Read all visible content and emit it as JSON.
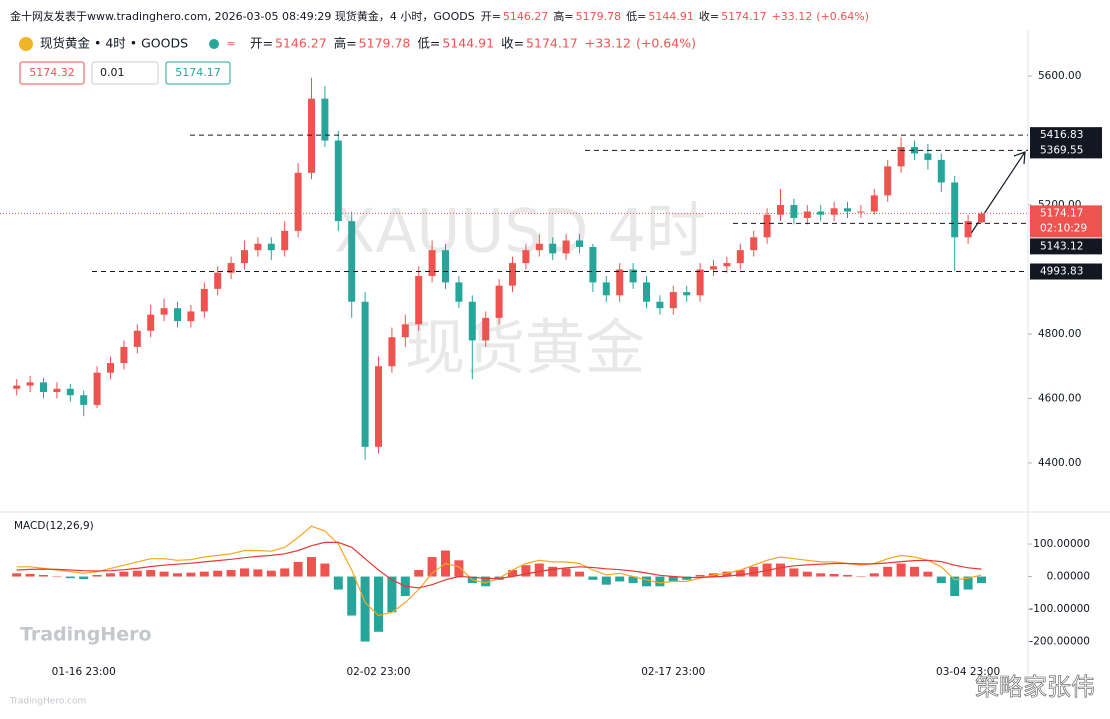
{
  "header": {
    "text": "金十网友发表于www.tradinghero.com, 2026-03-05 08:49:29 现货黄金，4 小时，GOODS",
    "ohlc": [
      {
        "label": "开=",
        "value": 5146.27
      },
      {
        "label": "高=",
        "value": 5179.78
      },
      {
        "label": "低=",
        "value": 5144.91
      },
      {
        "label": "收=",
        "value": 5174.17
      }
    ],
    "change": "+33.12",
    "change_pct": "(+0.64%)"
  },
  "order": {
    "sell": 5174.32,
    "qty": 0.01,
    "buy": 5174.17
  },
  "footer": {
    "logo": "TradingHero",
    "site": "TradingHero.com",
    "credit": "策略家张伟"
  },
  "chart_data": {
    "type": "candlestick",
    "title": "现货黄金 • 4时 • GOODS",
    "watermark": [
      "XAUUSD 4时",
      "现货黄金"
    ],
    "categories": [
      null,
      null,
      null,
      null,
      null,
      "01-16 23:00",
      null,
      null,
      null,
      null,
      null,
      null,
      null,
      null,
      null,
      null,
      null,
      null,
      null,
      null,
      null,
      null,
      null,
      null,
      null,
      null,
      null,
      "02-02 23:00",
      null,
      null,
      null,
      null,
      null,
      null,
      null,
      null,
      null,
      null,
      null,
      null,
      null,
      null,
      null,
      null,
      null,
      null,
      null,
      null,
      null,
      "02-17 23:00",
      null,
      null,
      null,
      null,
      null,
      null,
      null,
      null,
      null,
      null,
      null,
      null,
      null,
      null,
      null,
      null,
      null,
      null,
      null,
      null,
      null,
      "03-04 23:00",
      null
    ],
    "candles": [
      [
        4630,
        4660,
        4610,
        4640
      ],
      [
        4640,
        4670,
        4620,
        4650
      ],
      [
        4650,
        4665,
        4600,
        4620
      ],
      [
        4620,
        4650,
        4600,
        4630
      ],
      [
        4630,
        4645,
        4590,
        4610
      ],
      [
        4610,
        4625,
        4545,
        4580
      ],
      [
        4580,
        4700,
        4570,
        4680
      ],
      [
        4680,
        4730,
        4660,
        4710
      ],
      [
        4710,
        4780,
        4690,
        4760
      ],
      [
        4760,
        4830,
        4740,
        4810
      ],
      [
        4810,
        4890,
        4790,
        4860
      ],
      [
        4860,
        4910,
        4840,
        4880
      ],
      [
        4880,
        4900,
        4820,
        4840
      ],
      [
        4840,
        4890,
        4820,
        4870
      ],
      [
        4870,
        4960,
        4850,
        4940
      ],
      [
        4940,
        5010,
        4920,
        4990
      ],
      [
        4990,
        5040,
        4970,
        5020
      ],
      [
        5020,
        5090,
        5000,
        5060
      ],
      [
        5060,
        5100,
        5040,
        5080
      ],
      [
        5080,
        5100,
        5030,
        5060
      ],
      [
        5060,
        5150,
        5040,
        5120
      ],
      [
        5120,
        5330,
        5100,
        5300
      ],
      [
        5300,
        5595,
        5280,
        5530
      ],
      [
        5530,
        5570,
        5380,
        5400
      ],
      [
        5400,
        5430,
        5120,
        5150
      ],
      [
        5150,
        5180,
        4850,
        4900
      ],
      [
        4900,
        4930,
        4410,
        4450
      ],
      [
        4450,
        4730,
        4430,
        4700
      ],
      [
        4700,
        4820,
        4680,
        4790
      ],
      [
        4790,
        4860,
        4760,
        4830
      ],
      [
        4830,
        5010,
        4810,
        4980
      ],
      [
        4980,
        5090,
        4960,
        5060
      ],
      [
        5060,
        5080,
        4940,
        4960
      ],
      [
        4960,
        4980,
        4880,
        4900
      ],
      [
        4900,
        4920,
        4660,
        4780
      ],
      [
        4780,
        4870,
        4760,
        4850
      ],
      [
        4850,
        4970,
        4830,
        4950
      ],
      [
        4950,
        5040,
        4930,
        5020
      ],
      [
        5020,
        5080,
        5000,
        5060
      ],
      [
        5060,
        5110,
        5040,
        5080
      ],
      [
        5080,
        5100,
        5030,
        5050
      ],
      [
        5050,
        5110,
        5030,
        5090
      ],
      [
        5090,
        5110,
        5050,
        5070
      ],
      [
        5070,
        5080,
        4930,
        4960
      ],
      [
        4960,
        4980,
        4900,
        4920
      ],
      [
        4920,
        5020,
        4900,
        5000
      ],
      [
        5000,
        5020,
        4940,
        4960
      ],
      [
        4960,
        4980,
        4880,
        4900
      ],
      [
        4900,
        4920,
        4860,
        4880
      ],
      [
        4880,
        4950,
        4860,
        4930
      ],
      [
        4930,
        4950,
        4900,
        4920
      ],
      [
        4920,
        5020,
        4900,
        5000
      ],
      [
        5000,
        5030,
        4980,
        5010
      ],
      [
        5010,
        5040,
        4990,
        5020
      ],
      [
        5020,
        5080,
        5000,
        5060
      ],
      [
        5060,
        5120,
        5040,
        5100
      ],
      [
        5100,
        5190,
        5080,
        5170
      ],
      [
        5170,
        5250,
        5150,
        5200
      ],
      [
        5200,
        5220,
        5140,
        5160
      ],
      [
        5160,
        5200,
        5140,
        5180
      ],
      [
        5180,
        5200,
        5150,
        5170
      ],
      [
        5170,
        5210,
        5150,
        5190
      ],
      [
        5190,
        5210,
        5160,
        5180
      ],
      [
        5180,
        5200,
        5160,
        5180
      ],
      [
        5180,
        5250,
        5170,
        5230
      ],
      [
        5230,
        5340,
        5210,
        5320
      ],
      [
        5320,
        5410,
        5300,
        5380
      ],
      [
        5380,
        5400,
        5340,
        5360
      ],
      [
        5360,
        5390,
        5310,
        5340
      ],
      [
        5340,
        5360,
        5240,
        5270
      ],
      [
        5270,
        5290,
        4995,
        5100
      ],
      [
        5100,
        5170,
        5080,
        5150
      ],
      [
        5146.27,
        5179.78,
        5144.91,
        5174.17
      ]
    ],
    "up_color": "#ef5350",
    "down_color": "#26a69a",
    "ylim": [
      4254,
      5712
    ],
    "yticks": [
      {
        "value": 4400,
        "label": "4400.00"
      },
      {
        "value": 4600,
        "label": "4600.00"
      },
      {
        "value": 4800,
        "label": "4800.00"
      },
      {
        "value": 5200,
        "label": "5200.00"
      },
      {
        "value": 5600,
        "label": "5600.00"
      }
    ],
    "levels": [
      5416.83,
      5369.55,
      5143.12,
      4993.83
    ],
    "last_price": 5174.17,
    "countdown": "02:10:29",
    "macd": {
      "title": "MACD(12,26,9)",
      "histogram": [
        10,
        8,
        5,
        0,
        -5,
        -8,
        5,
        10,
        15,
        18,
        20,
        15,
        10,
        12,
        15,
        18,
        20,
        25,
        22,
        18,
        25,
        45,
        60,
        40,
        -40,
        -120,
        -200,
        -170,
        -110,
        -60,
        20,
        60,
        80,
        50,
        -20,
        -30,
        -10,
        20,
        35,
        40,
        30,
        25,
        15,
        -10,
        -25,
        -15,
        -20,
        -30,
        -30,
        -15,
        -10,
        5,
        10,
        15,
        20,
        30,
        40,
        40,
        25,
        15,
        10,
        8,
        5,
        0,
        10,
        30,
        40,
        30,
        15,
        -20,
        -60,
        -40,
        -20
      ],
      "macd": [
        30,
        30,
        25,
        20,
        15,
        10,
        15,
        25,
        35,
        45,
        55,
        55,
        50,
        52,
        60,
        65,
        70,
        80,
        80,
        78,
        90,
        120,
        155,
        140,
        100,
        20,
        -80,
        -120,
        -110,
        -80,
        -40,
        10,
        40,
        30,
        -10,
        -20,
        -5,
        20,
        40,
        50,
        45,
        45,
        40,
        20,
        5,
        10,
        0,
        -10,
        -20,
        -15,
        -15,
        -5,
        5,
        10,
        20,
        35,
        50,
        60,
        55,
        50,
        45,
        45,
        40,
        35,
        40,
        55,
        65,
        60,
        50,
        30,
        -10,
        -5,
        5
      ],
      "signal": [
        20,
        22,
        23,
        22,
        20,
        18,
        17,
        18,
        21,
        25,
        31,
        35,
        38,
        41,
        45,
        49,
        53,
        58,
        62,
        65,
        70,
        80,
        95,
        105,
        105,
        90,
        55,
        20,
        -10,
        -30,
        -35,
        -25,
        -10,
        0,
        -2,
        -6,
        -6,
        0,
        8,
        16,
        22,
        27,
        30,
        28,
        24,
        21,
        17,
        11,
        4,
        0,
        -3,
        -3,
        -1,
        1,
        5,
        11,
        19,
        27,
        33,
        36,
        38,
        40,
        40,
        39,
        39,
        42,
        46,
        49,
        50,
        46,
        35,
        27,
        23
      ],
      "macd_color": "#f5a623",
      "signal_color": "#e53935",
      "ylim": [
        -226,
        174
      ],
      "yticks": [
        {
          "value": -200,
          "label": "-200.00000"
        },
        {
          "value": -100,
          "label": "-100.00000"
        },
        {
          "value": 0,
          "label": "0.00000"
        },
        {
          "value": 100,
          "label": "100.00000"
        }
      ]
    }
  }
}
